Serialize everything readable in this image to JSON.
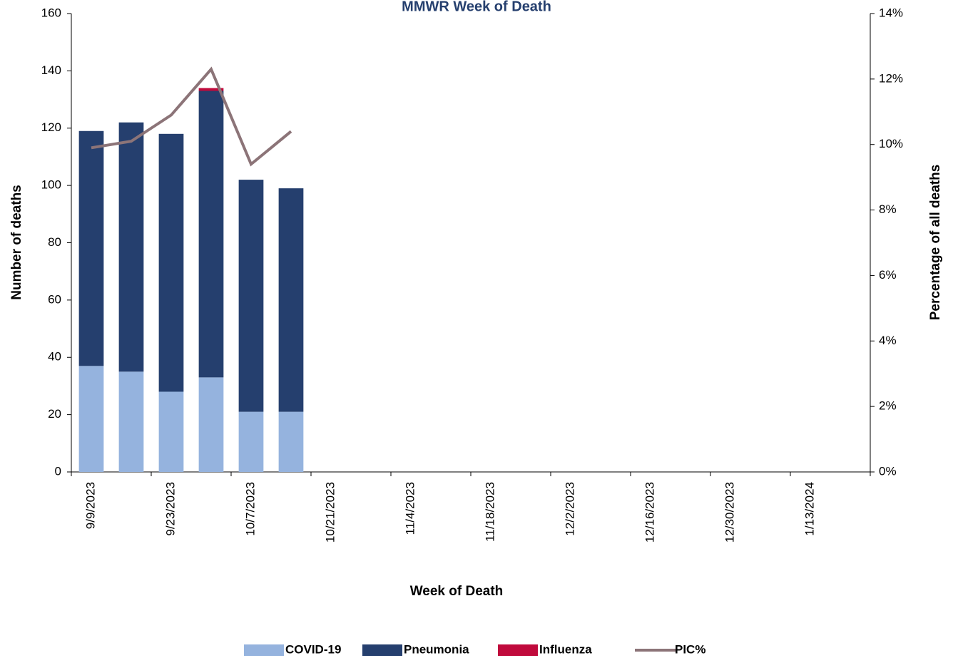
{
  "chart_data": {
    "type": "bar",
    "title": "MMWR Week of Death",
    "x_label": "Week of Death",
    "y_label": "Number of deaths",
    "y2_label": "Percentage of all deaths",
    "categories": [
      "9/9/2023",
      null,
      "9/23/2023",
      null,
      "10/7/2023",
      null,
      "10/21/2023",
      null,
      "11/4/2023",
      null,
      "11/18/2023",
      null,
      "12/2/2023",
      null,
      "12/16/2023",
      null,
      "12/30/2023",
      null,
      "1/13/2024",
      null
    ],
    "stacked": true,
    "series": [
      {
        "name": "COVID-19",
        "color": "#95b3de",
        "values": [
          37,
          35,
          28,
          33,
          21,
          21,
          null,
          null,
          null,
          null,
          null,
          null,
          null,
          null,
          null,
          null,
          null,
          null,
          null,
          null
        ]
      },
      {
        "name": "Pneumonia",
        "color": "#253f6e",
        "values": [
          82,
          87,
          90,
          100,
          81,
          78,
          null,
          null,
          null,
          null,
          null,
          null,
          null,
          null,
          null,
          null,
          null,
          null,
          null,
          null
        ]
      },
      {
        "name": "Influenza",
        "color": "#c00a3c",
        "values": [
          0,
          0,
          0,
          1,
          0,
          0,
          null,
          null,
          null,
          null,
          null,
          null,
          null,
          null,
          null,
          null,
          null,
          null,
          null,
          null
        ]
      },
      {
        "name": "PIC%",
        "type": "line",
        "axis": "y2",
        "color": "#8c7478",
        "values": [
          9.9,
          10.1,
          10.9,
          12.3,
          9.4,
          10.4,
          null,
          null,
          null,
          null,
          null,
          null,
          null,
          null,
          null,
          null,
          null,
          null,
          null,
          null
        ]
      }
    ],
    "ylim": [
      0,
      160
    ],
    "yticks": [
      0,
      20,
      40,
      60,
      80,
      100,
      120,
      140,
      160
    ],
    "y2lim": [
      0,
      14
    ],
    "y2ticks": [
      {
        "value": 0,
        "label": "0%"
      },
      {
        "value": 2,
        "label": "2%"
      },
      {
        "value": 4,
        "label": "4%"
      },
      {
        "value": 6,
        "label": "6%"
      },
      {
        "value": 8,
        "label": "8%"
      },
      {
        "value": 10,
        "label": "10%"
      },
      {
        "value": 12,
        "label": "12%"
      },
      {
        "value": 14,
        "label": "14%"
      }
    ],
    "legend": "bottom"
  }
}
